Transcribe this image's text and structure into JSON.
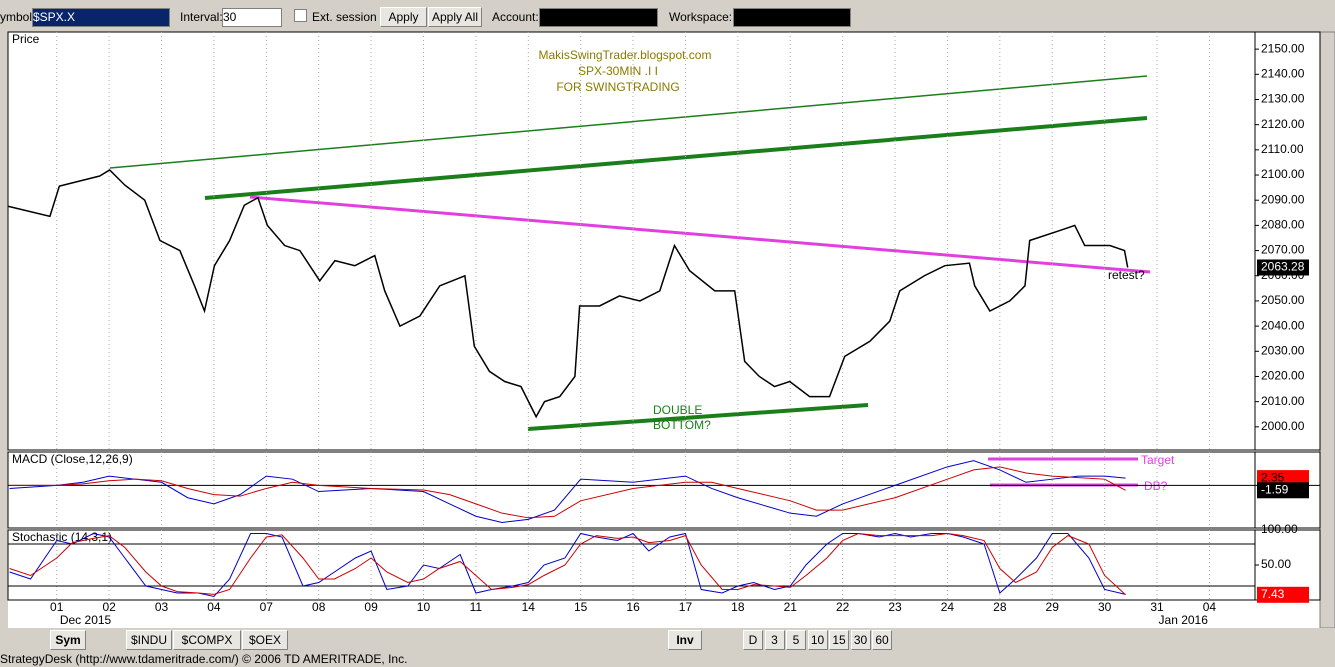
{
  "toolbar": {
    "symbol_label": "ymbol:",
    "symbol": "$SPX.X",
    "interval_label": "Interval:",
    "interval": "30",
    "ext_session": "Ext. session",
    "apply": "Apply",
    "apply_all": "Apply All",
    "account_label": "Account:",
    "workspace_label": "Workspace:"
  },
  "chart_data": [
    {
      "type": "line",
      "title": "Price",
      "color": "#000000",
      "annotations": [
        "MakisSwingTrader.blogspot.com",
        "SPX-30MIN .I I",
        "FOR SWINGTRADING",
        "DOUBLE",
        "BOTTOM?",
        "retest?"
      ],
      "x": [
        -0.93,
        -0.13,
        0.05,
        0.82,
        1.01,
        1.3,
        1.68,
        1.97,
        2.35,
        2.63,
        2.82,
        3.01,
        3.3,
        3.58,
        3.84,
        4.02,
        4.35,
        4.64,
        5.02,
        5.31,
        5.69,
        6.07,
        6.26,
        6.55,
        6.93,
        7.31,
        7.79,
        7.97,
        8.26,
        8.55,
        8.86,
        9.15,
        9.31,
        9.6,
        9.89,
        9.98,
        10.36,
        10.74,
        11.13,
        11.51,
        11.79,
        12.08,
        12.56,
        12.94,
        13.13,
        13.41,
        13.7,
        13.99,
        14.37,
        14.75,
        15.04,
        15.52,
        15.9,
        16.09,
        16.56,
        16.95,
        17.42,
        17.52,
        17.81,
        18.19,
        18.48,
        18.57,
        19.15,
        19.43,
        19.62,
        20.1,
        20.38,
        20.44
      ],
      "values": [
        2087.6,
        2083.6,
        2095.6,
        2099.6,
        2102,
        2096,
        2090,
        2074,
        2070,
        2056,
        2046,
        2064,
        2074,
        2088,
        2091,
        2080,
        2072,
        2070,
        2058,
        2066,
        2064,
        2068,
        2054,
        2040,
        2044,
        2056,
        2060,
        2032,
        2022,
        2018,
        2016,
        2004,
        2010,
        2012,
        2020,
        2048,
        2048,
        2052,
        2050,
        2054,
        2072,
        2062,
        2054,
        2054,
        2026,
        2020,
        2016,
        2018,
        2012,
        2012,
        2028,
        2034,
        2042,
        2054,
        2060,
        2064,
        2065,
        2056,
        2046,
        2050,
        2056,
        2074,
        2078,
        2080,
        2072,
        2072,
        2070,
        2063.28
      ],
      "last_value": 2063.28,
      "xlim": [
        -0.93,
        22.87
      ],
      "xticks": [
        {
          "value": 0,
          "label": "01"
        },
        {
          "value": 1,
          "label": "02"
        },
        {
          "value": 2,
          "label": "03"
        },
        {
          "value": 3,
          "label": "04"
        },
        {
          "value": 4,
          "label": "07"
        },
        {
          "value": 5,
          "label": "08"
        },
        {
          "value": 6,
          "label": "09"
        },
        {
          "value": 7,
          "label": "10"
        },
        {
          "value": 8,
          "label": "11"
        },
        {
          "value": 9,
          "label": "14"
        },
        {
          "value": 10,
          "label": "15"
        },
        {
          "value": 11,
          "label": "16"
        },
        {
          "value": 12,
          "label": "17"
        },
        {
          "value": 13,
          "label": "18"
        },
        {
          "value": 14,
          "label": "21"
        },
        {
          "value": 15,
          "label": "22"
        },
        {
          "value": 16,
          "label": "23"
        },
        {
          "value": 17,
          "label": "24"
        },
        {
          "value": 18,
          "label": "28"
        },
        {
          "value": 19,
          "label": "29"
        },
        {
          "value": 20,
          "label": "30"
        },
        {
          "value": 21,
          "label": "31"
        },
        {
          "value": 22,
          "label": "04"
        }
      ],
      "x_period_labels": [
        {
          "value": 0.55,
          "label": "Dec 2015"
        },
        {
          "value": 21.5,
          "label": "Jan 2016"
        }
      ],
      "ylim": [
        1990.8,
        2156.8
      ],
      "yticks": [
        {
          "value": 2000,
          "label": "2000.00"
        },
        {
          "value": 2010,
          "label": "2010.00"
        },
        {
          "value": 2020,
          "label": "2020.00"
        },
        {
          "value": 2030,
          "label": "2030.00"
        },
        {
          "value": 2040,
          "label": "2040.00"
        },
        {
          "value": 2050,
          "label": "2050.00"
        },
        {
          "value": 2060,
          "label": "2060.00"
        },
        {
          "value": 2070,
          "label": "2070.00"
        },
        {
          "value": 2080,
          "label": "2080.00"
        },
        {
          "value": 2090,
          "label": "2090.00"
        },
        {
          "value": 2100,
          "label": "2100.00"
        },
        {
          "value": 2110,
          "label": "2110.00"
        },
        {
          "value": 2120,
          "label": "2120.00"
        },
        {
          "value": 2130,
          "label": "2130.00"
        },
        {
          "value": 2140,
          "label": "2140.00"
        },
        {
          "value": 2150,
          "label": "2150.00"
        }
      ],
      "grid": true
    },
    {
      "type": "line",
      "title": "MACD (Close,12,26,9)",
      "annotations": [
        "Target",
        "DB?"
      ],
      "x": [
        -0.9,
        0,
        0.5,
        1,
        1.5,
        2,
        2.5,
        3,
        3.5,
        4,
        4.5,
        5,
        6,
        7,
        7.5,
        8,
        8.5,
        9,
        9.5,
        10,
        11,
        12,
        12.5,
        13,
        14,
        14.5,
        15,
        16,
        17,
        17.5,
        18,
        18.5,
        19,
        19.5,
        20,
        20.4
      ],
      "series": [
        {
          "color": "#0000cc",
          "values": [
            -1,
            0,
            1,
            3,
            2,
            1,
            -4,
            -6,
            -3,
            3,
            2,
            -2,
            -1,
            -2,
            -6,
            -10,
            -12,
            -11,
            -8,
            2,
            1,
            3,
            -1,
            -4,
            -9,
            -10,
            -6,
            0,
            6,
            8,
            5,
            1,
            2,
            3,
            3,
            2.35
          ]
        },
        {
          "color": "#cc0000",
          "values": [
            0,
            0,
            0.5,
            1.5,
            2,
            1.5,
            -1,
            -3,
            -3.5,
            -1,
            1,
            0,
            -1,
            -1.5,
            -3,
            -6,
            -9,
            -10.5,
            -10,
            -5,
            -1,
            1,
            1,
            -1,
            -5,
            -8,
            -8,
            -4,
            2,
            5,
            6,
            4,
            3,
            2.5,
            2,
            -1.59
          ]
        }
      ],
      "last_values": [
        2.35,
        -1.59
      ],
      "ylim": [
        -13.8,
        10.8
      ],
      "zero_line": 0
    },
    {
      "type": "line",
      "title": "Stochastic (14,3,1)",
      "x": [
        -0.9,
        -0.5,
        0,
        0.3,
        0.7,
        1,
        1.3,
        1.7,
        2,
        2.3,
        2.7,
        3,
        3.3,
        3.7,
        4,
        4.3,
        4.7,
        5,
        5.3,
        5.7,
        6,
        6.3,
        6.7,
        7,
        7.3,
        7.7,
        8,
        8.3,
        8.7,
        9,
        9.3,
        9.7,
        10,
        10.3,
        10.7,
        11,
        11.3,
        11.7,
        12,
        12.3,
        12.7,
        13,
        13.3,
        13.7,
        14,
        14.3,
        14.7,
        15,
        15.3,
        15.7,
        16,
        16.3,
        16.7,
        17,
        17.3,
        17.7,
        18,
        18.3,
        18.7,
        19,
        19.3,
        19.7,
        20,
        20.4
      ],
      "series": [
        {
          "color": "#0000cc",
          "values": [
            40,
            30,
            85,
            80,
            95,
            90,
            60,
            20,
            15,
            10,
            10,
            5,
            30,
            95,
            95,
            90,
            20,
            25,
            40,
            60,
            70,
            15,
            20,
            50,
            45,
            65,
            10,
            15,
            20,
            25,
            50,
            60,
            95,
            90,
            85,
            95,
            70,
            90,
            95,
            15,
            10,
            20,
            25,
            15,
            20,
            50,
            80,
            95,
            95,
            90,
            95,
            90,
            95,
            95,
            90,
            80,
            10,
            30,
            60,
            95,
            95,
            60,
            15,
            8
          ]
        },
        {
          "color": "#cc0000",
          "values": [
            45,
            35,
            60,
            82,
            88,
            92,
            75,
            40,
            20,
            12,
            10,
            8,
            15,
            60,
            90,
            93,
            60,
            30,
            30,
            45,
            60,
            40,
            25,
            30,
            45,
            55,
            35,
            15,
            18,
            22,
            35,
            50,
            80,
            92,
            88,
            90,
            82,
            85,
            92,
            50,
            15,
            15,
            22,
            20,
            18,
            35,
            60,
            85,
            95,
            92,
            92,
            92,
            92,
            95,
            92,
            85,
            45,
            25,
            40,
            75,
            92,
            80,
            35,
            7.43
          ]
        }
      ],
      "last_value": 7.43,
      "ylim": [
        0,
        100
      ],
      "yticks": [
        {
          "value": 100,
          "label": "100.00"
        },
        {
          "value": 50,
          "label": "50.00"
        }
      ],
      "levels": [
        80,
        20
      ]
    }
  ],
  "bottom_bar": {
    "sym": "Sym",
    "tabs": [
      "$INDU",
      "$COMPX",
      "$OEX"
    ],
    "inv": "Inv",
    "periods": [
      "D",
      "3",
      "5",
      "10",
      "15",
      "30",
      "60"
    ]
  },
  "status_bar": "StrategyDesk (http://www.tdameritrade.com/) © 2006 TD AMERITRADE, Inc."
}
